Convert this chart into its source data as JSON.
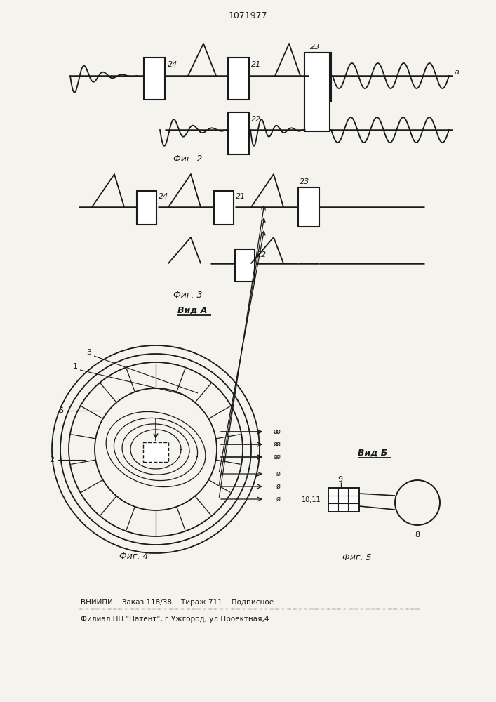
{
  "title": "1071977",
  "bg_color": "#f5f3ee",
  "line_color": "#1a1a1a",
  "fig2_label": "Фиг. 2",
  "fig3_label": "Фиг. 3",
  "fig4_label": "Фиг. 4",
  "fig5_label": "Фиг. 5",
  "vid_a_label": "Вид А",
  "vid_b_label": "Вид Б",
  "footer1": "ВНИИПИ    Заказ 118/38    Тираж 711    Подписное",
  "footer2": "Филиал ПП \"Патент\", г.Ужгород, ул.Проектная,4"
}
